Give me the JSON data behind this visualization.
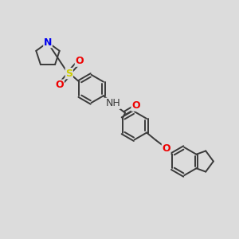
{
  "bg_color": "#dcdcdc",
  "bond_color": "#3a3a3a",
  "bond_lw": 1.4,
  "N_color": "#0000ee",
  "O_color": "#ee0000",
  "S_color": "#cccc00",
  "text_color": "#3a3a3a",
  "figsize": [
    3.0,
    3.0
  ],
  "dpi": 100,
  "xlim": [
    0,
    14
  ],
  "ylim": [
    0,
    14
  ]
}
